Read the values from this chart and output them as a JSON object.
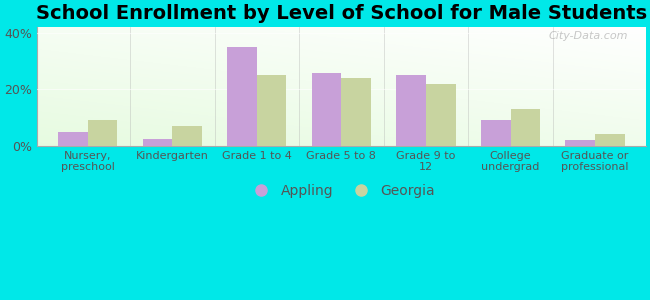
{
  "title": "School Enrollment by Level of School for Male Students",
  "categories": [
    "Nursery,\npreschool",
    "Kindergarten",
    "Grade 1 to 4",
    "Grade 5 to 8",
    "Grade 9 to\n12",
    "College\nundergrad",
    "Graduate or\nprofessional"
  ],
  "appling": [
    5,
    2.5,
    35,
    26,
    25,
    9,
    2
  ],
  "georgia": [
    9,
    7,
    25,
    24,
    22,
    13,
    4
  ],
  "appling_color": "#c8a0d8",
  "georgia_color": "#c8d4a0",
  "background_color": "#00e8e8",
  "ylim": [
    0,
    42
  ],
  "yticks": [
    0,
    20,
    40
  ],
  "ytick_labels": [
    "0%",
    "20%",
    "40%"
  ],
  "title_fontsize": 14,
  "legend_labels": [
    "Appling",
    "Georgia"
  ],
  "bar_width": 0.35,
  "watermark": "City-Data.com"
}
